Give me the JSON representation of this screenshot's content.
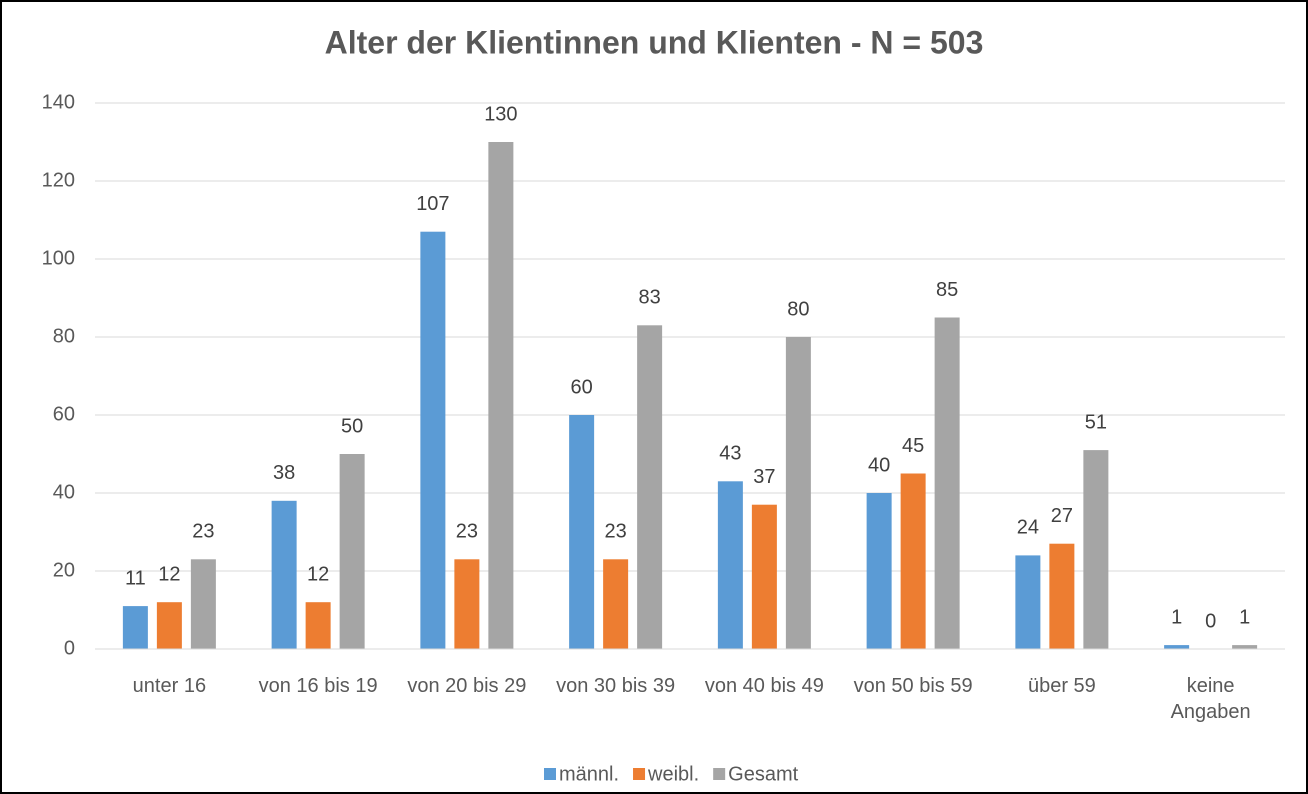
{
  "chart_data": {
    "type": "bar",
    "title": "Alter der Klientinnen und Klienten - N = 503",
    "categories": [
      "unter 16",
      "von 16 bis 19",
      "von 20 bis 29",
      "von 30 bis 39",
      "von 40 bis 49",
      "von 50 bis 59",
      "über 59",
      "keine\nAngaben"
    ],
    "series": [
      {
        "name": "männl.",
        "color": "#5b9bd5",
        "values": [
          11,
          38,
          107,
          60,
          43,
          40,
          24,
          1
        ]
      },
      {
        "name": "weibl.",
        "color": "#ed7d31",
        "values": [
          12,
          12,
          23,
          23,
          37,
          45,
          27,
          0
        ]
      },
      {
        "name": "Gesamt",
        "color": "#a5a5a5",
        "values": [
          23,
          50,
          130,
          83,
          80,
          85,
          51,
          1
        ]
      }
    ],
    "ylim": [
      0,
      140
    ],
    "yticks": [
      0,
      20,
      40,
      60,
      80,
      100,
      120,
      140
    ],
    "grid": true,
    "legend": "bottom"
  }
}
